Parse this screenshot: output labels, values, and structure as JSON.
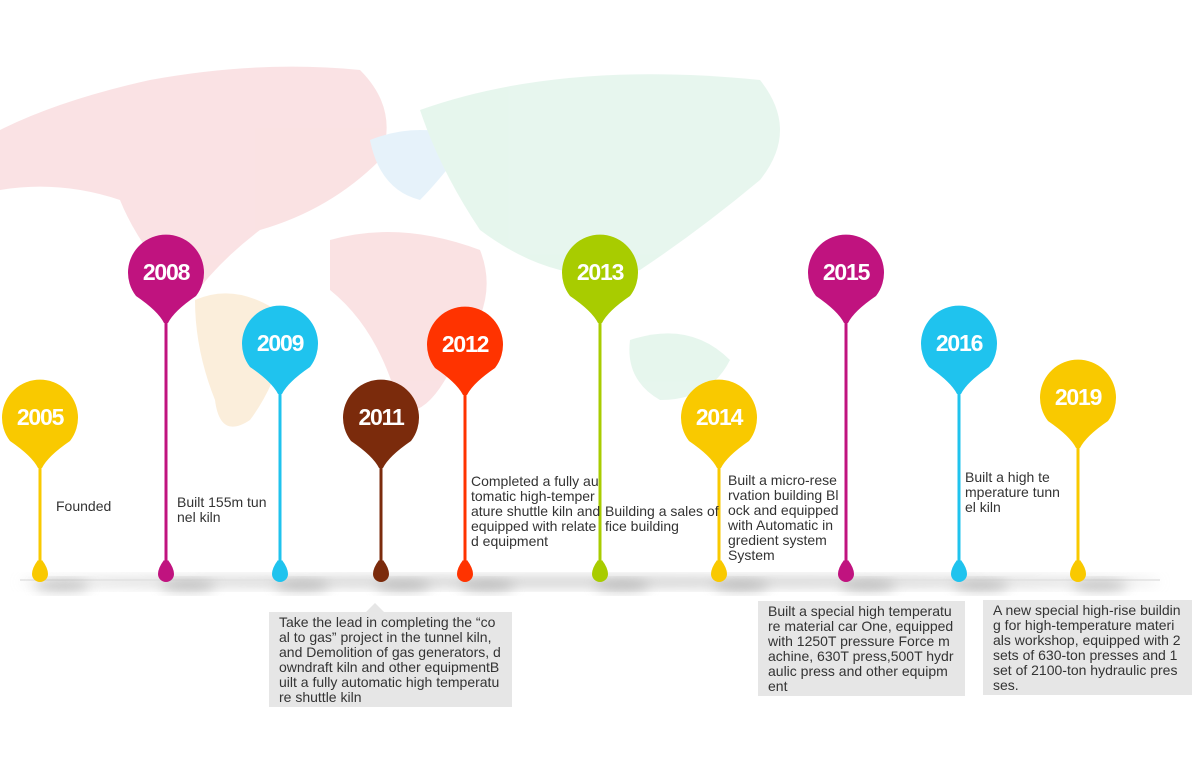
{
  "milestones": [
    {
      "year": "2005",
      "text": "Founded"
    },
    {
      "year": "2008",
      "text": "Built 155m tunnel kiln"
    },
    {
      "year": "2009"
    },
    {
      "year": "2011",
      "text": "Take the lead in completing the “coal to gas” project in the tunnel kiln, and Demolition of gas generators, downdraft kiln and other equipmentBuilt a fully automatic high temperature shuttle kiln"
    },
    {
      "year": "2012",
      "text": "Completed a fully automatic high-temperature shuttle kiln and equipped with related equipment"
    },
    {
      "year": "2013",
      "text": "Building a sales office building"
    },
    {
      "year": "2014",
      "text": "Built a micro-reservation building Block and equipped with Automatic ingredient system System"
    },
    {
      "year": "2015",
      "text": "Built a special high temperature material car One, equipped with 1250T pressure Force machine, 630T press,500T hydraulic press and other equipment"
    },
    {
      "year": "2016",
      "text": "Built a high temperature tunnel kiln"
    },
    {
      "year": "2019",
      "text": "A new special high-rise building for high-temperature materials workshop, equipped with 2 sets of 630-ton presses and 1 set of 2100-ton hydraulic presses."
    }
  ]
}
